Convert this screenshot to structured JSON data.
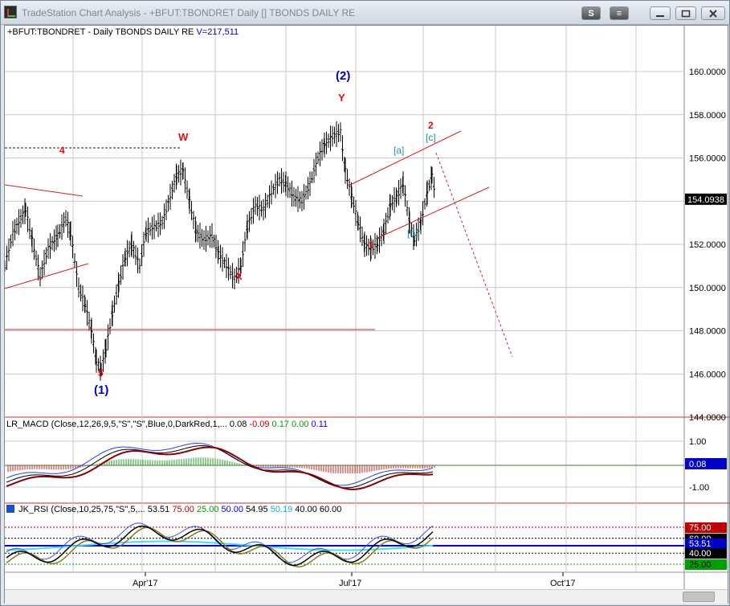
{
  "window": {
    "title": "TradeStation Chart Analysis - +BFUT:TBONDRET Daily [] TBONDS DAILY RE",
    "buttons": {
      "s_label": "S",
      "grid_label": "≡"
    }
  },
  "price_pane": {
    "symbol_label": "+BFUT:TBONDRET - Daily  TBONDS DAILY RE",
    "volume_label": "V=217,511",
    "axis_labels": [
      "160.0000",
      "158.0000",
      "156.0000",
      "152.0000",
      "150.0000",
      "148.0000",
      "146.0000",
      "144.0000"
    ],
    "last_price": "154.0938",
    "wave_labels": {
      "w": "W",
      "x": "X",
      "y": "Y",
      "four": "4",
      "five": "5",
      "one": "1",
      "two": "2",
      "paren1": "(1)",
      "paren2": "(2)",
      "a": "[a]",
      "b": "[b]",
      "c": "[c]"
    }
  },
  "macd_pane": {
    "label_prefix": "LR_MACD (Close,12,26,9,5,\"S\",\"S\",Blue,0,DarkRed,1,...",
    "values": [
      "0.08",
      "-0.09",
      "0.17",
      "0.00",
      "0.11"
    ],
    "axis_labels": [
      "1.00",
      "-1.00"
    ],
    "current_value": "0.08"
  },
  "rsi_pane": {
    "label_prefix": "JK_RSI (Close,10,25,75,\"S\",5,...",
    "values": [
      "53.51",
      "75.00",
      "25.00",
      "50.00",
      "54.95",
      "50.19",
      "40.00",
      "60.00"
    ],
    "axis_labels": [
      "75.00",
      "60.00",
      "53.51",
      "40.00",
      "25.00"
    ]
  },
  "time_axis": {
    "labels": [
      "Apr'17",
      "Jul'17",
      "Oct'17"
    ]
  },
  "colors": {
    "wave_red": "#e01010",
    "wave_blue": "#0000c0",
    "wave_teal": "#2090a0",
    "trend_red": "#d42020"
  }
}
